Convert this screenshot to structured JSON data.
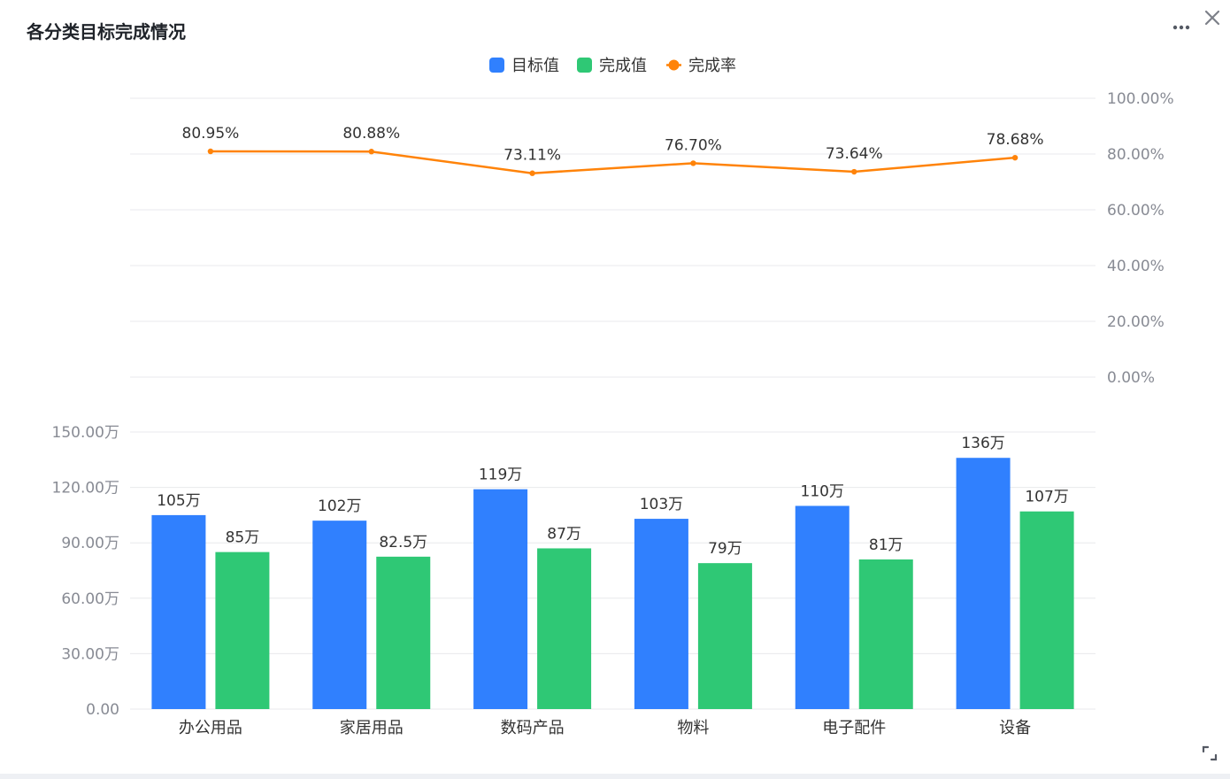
{
  "header": {
    "title": "各分类目标完成情况",
    "more_icon": "more-horizontal-icon",
    "close_icon": "close-icon",
    "expand_icon": "expand-icon"
  },
  "chart_data": {
    "type": "bar",
    "categories": [
      "办公用品",
      "家居用品",
      "数码产品",
      "物料",
      "电子配件",
      "设备"
    ],
    "series": [
      {
        "name": "目标值",
        "type": "bar",
        "color": "#3080fe",
        "values": [
          105,
          102,
          119,
          103,
          110,
          136
        ],
        "labels": [
          "105万",
          "102万",
          "119万",
          "103万",
          "110万",
          "136万"
        ]
      },
      {
        "name": "完成值",
        "type": "bar",
        "color": "#2fc875",
        "values": [
          85,
          82.5,
          87,
          79,
          81,
          107
        ],
        "labels": [
          "85万",
          "82.5万",
          "87万",
          "79万",
          "81万",
          "107万"
        ]
      },
      {
        "name": "完成率",
        "type": "line",
        "color": "#ff8309",
        "values": [
          80.95,
          80.88,
          73.11,
          76.7,
          73.64,
          78.68
        ],
        "labels": [
          "80.95%",
          "80.88%",
          "73.11%",
          "76.70%",
          "73.64%",
          "78.68%"
        ]
      }
    ],
    "y_left": {
      "ylim": [
        0,
        150
      ],
      "ticks": [
        0,
        30,
        60,
        90,
        120,
        150
      ],
      "tick_labels": [
        "0.00",
        "30.00万",
        "60.00万",
        "90.00万",
        "120.00万",
        "150.00万"
      ]
    },
    "y_right": {
      "ylim": [
        0,
        100
      ],
      "ticks": [
        0,
        20,
        40,
        60,
        80,
        100
      ],
      "tick_labels": [
        "0.00%",
        "20.00%",
        "40.00%",
        "60.00%",
        "80.00%",
        "100.00%"
      ]
    },
    "grid": true,
    "legend": "top-center",
    "colors": {
      "grid": "#e8e9ec",
      "tick_label": "#888b94",
      "data_label": "#333333",
      "category_label": "#333333",
      "legend_label": "#333333"
    }
  }
}
